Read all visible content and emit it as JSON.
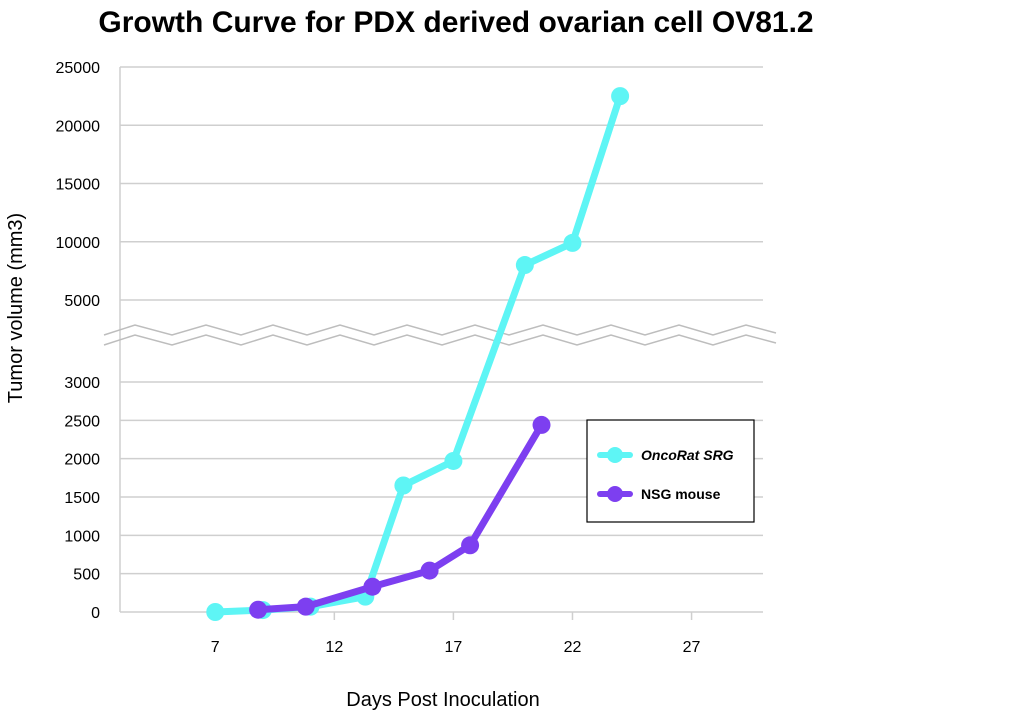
{
  "chart_data": {
    "type": "line",
    "title": "Growth Curve for PDX derived ovarian cell OV81.2",
    "xlabel": "Days Post Inoculation",
    "ylabel": "Tumor volume (mm3)",
    "x_ticks": [
      7,
      12,
      17,
      22,
      27
    ],
    "xlim": [
      3,
      30
    ],
    "y_axis_break": {
      "lower_range": [
        0,
        3000
      ],
      "upper_range": [
        5000,
        25000
      ]
    },
    "y_ticks_lower": [
      "0",
      "500",
      "1000",
      "1500",
      "2000",
      "2500",
      "3000"
    ],
    "y_ticks_upper": [
      "5000",
      "10000",
      "15000",
      "20000",
      "25000"
    ],
    "legend_position": "right",
    "series": [
      {
        "name": "OncoRat SRG",
        "color": "#5ef5f5",
        "x": [
          7,
          9,
          11,
          13.3,
          14.9,
          17,
          20,
          22,
          24
        ],
        "y": [
          0,
          25,
          70,
          200,
          1650,
          1970,
          8000,
          9900,
          22500
        ]
      },
      {
        "name": "NSG mouse",
        "color": "#7d3ff0",
        "x": [
          8.8,
          10.8,
          13.6,
          16,
          17.7,
          20.7
        ],
        "y": [
          30,
          70,
          330,
          540,
          870,
          2440
        ]
      }
    ]
  }
}
